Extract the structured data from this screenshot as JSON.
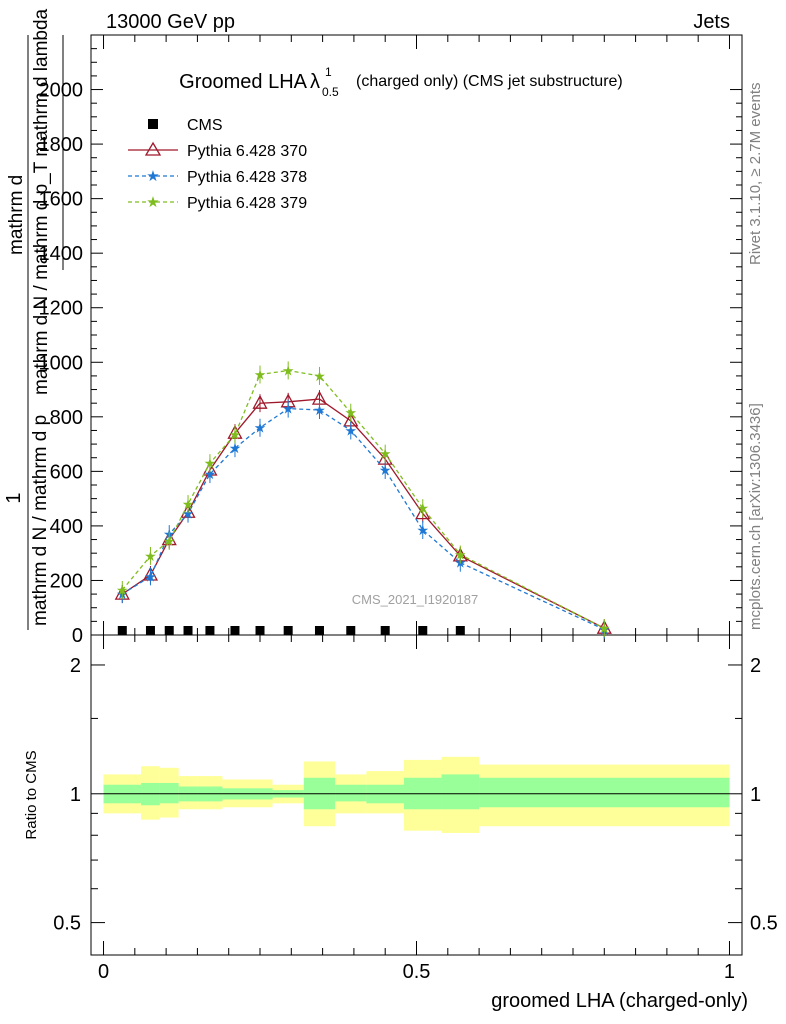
{
  "header": {
    "energy_label": "13000 GeV pp",
    "category_label": "Jets"
  },
  "side_labels": {
    "rivet": "Rivet 3.1.10, ≥ 2.7M events",
    "mcplots": "mcplots.cern.ch [arXiv:1306.3436]"
  },
  "watermark": "CMS_2021_I1920187",
  "chart_data": [
    {
      "type": "line",
      "title_main": "Groomed LHA",
      "title_symbol": "λ",
      "title_superscript": "1",
      "title_subscript": "0.5",
      "title_suffix": "(charged only) (CMS jet substructure)",
      "ylabel_fraction_numerator_left": "1",
      "ylabel_fraction_denominator_left": "mathrm d N / mathrm d p",
      "ylabel_fraction_numerator_right": "mathrm d",
      "ylabel_fraction_denominator_right": "mathrm d p",
      "ylabel_tilted": "mathrm d N / mathrm d p_T mathrm d lambda",
      "xlim": [
        -0.02,
        1.02
      ],
      "ylim": [
        0,
        2200
      ],
      "yticks": [
        0,
        200,
        400,
        600,
        800,
        1000,
        1200,
        1400,
        1600,
        1800,
        2000
      ],
      "ytick_labels": [
        "0",
        "200",
        "400",
        "600",
        "800",
        "1000",
        "1200",
        "1400",
        "1600",
        "1800",
        "2000"
      ],
      "legend_position": "top-left",
      "series": [
        {
          "name": "CMS",
          "style": "marker-square",
          "color": "#000000",
          "x": [
            0.03,
            0.075,
            0.105,
            0.135,
            0.17,
            0.21,
            0.25,
            0.295,
            0.345,
            0.395,
            0.45,
            0.51,
            0.57
          ],
          "y": [
            0,
            0,
            0,
            0,
            0,
            0,
            0,
            0,
            0,
            0,
            0,
            0,
            0
          ]
        },
        {
          "name": "Pythia 6.428 370",
          "style": "solid-triangle",
          "color": "#a0182b",
          "x": [
            0.03,
            0.075,
            0.105,
            0.135,
            0.17,
            0.21,
            0.25,
            0.295,
            0.345,
            0.395,
            0.45,
            0.51,
            0.57,
            0.8
          ],
          "y": [
            150,
            220,
            350,
            450,
            605,
            740,
            850,
            855,
            865,
            785,
            645,
            445,
            290,
            25
          ]
        },
        {
          "name": "Pythia 6.428 378",
          "style": "dashed-star",
          "color": "#1f78d4",
          "x": [
            0.03,
            0.075,
            0.105,
            0.135,
            0.17,
            0.21,
            0.25,
            0.295,
            0.345,
            0.395,
            0.45,
            0.51,
            0.57,
            0.8
          ],
          "y": [
            150,
            215,
            370,
            445,
            590,
            685,
            760,
            830,
            825,
            750,
            605,
            385,
            265,
            20
          ]
        },
        {
          "name": "Pythia 6.428 379",
          "style": "dashed-star",
          "color": "#7fbd1e",
          "x": [
            0.03,
            0.075,
            0.105,
            0.135,
            0.17,
            0.21,
            0.25,
            0.295,
            0.345,
            0.395,
            0.45,
            0.51,
            0.57,
            0.8
          ],
          "y": [
            165,
            290,
            345,
            480,
            630,
            735,
            955,
            970,
            950,
            815,
            665,
            465,
            295,
            25
          ]
        }
      ]
    },
    {
      "type": "area",
      "ylabel": "Ratio to CMS",
      "xlabel": "groomed LHA (charged-only)",
      "xlim": [
        -0.02,
        1.02
      ],
      "ylim": [
        0.42,
        2.35
      ],
      "log_y": true,
      "yticks": [
        0.5,
        1,
        2
      ],
      "ytick_labels": [
        "0.5",
        "1",
        "2"
      ],
      "xticks": [
        0,
        0.5,
        1
      ],
      "xtick_labels": [
        "0",
        "0.5",
        "1"
      ],
      "reference_line": 1,
      "bins": [
        {
          "x0": 0.0,
          "x1": 0.06,
          "inner": [
            0.95,
            1.05
          ],
          "outer": [
            0.9,
            1.11
          ]
        },
        {
          "x0": 0.06,
          "x1": 0.09,
          "inner": [
            0.94,
            1.06
          ],
          "outer": [
            0.87,
            1.16
          ]
        },
        {
          "x0": 0.09,
          "x1": 0.12,
          "inner": [
            0.95,
            1.06
          ],
          "outer": [
            0.88,
            1.15
          ]
        },
        {
          "x0": 0.12,
          "x1": 0.15,
          "inner": [
            0.96,
            1.04
          ],
          "outer": [
            0.92,
            1.1
          ]
        },
        {
          "x0": 0.15,
          "x1": 0.19,
          "inner": [
            0.96,
            1.04
          ],
          "outer": [
            0.92,
            1.1
          ]
        },
        {
          "x0": 0.19,
          "x1": 0.23,
          "inner": [
            0.97,
            1.03
          ],
          "outer": [
            0.93,
            1.08
          ]
        },
        {
          "x0": 0.23,
          "x1": 0.27,
          "inner": [
            0.97,
            1.03
          ],
          "outer": [
            0.93,
            1.08
          ]
        },
        {
          "x0": 0.27,
          "x1": 0.32,
          "inner": [
            0.98,
            1.02
          ],
          "outer": [
            0.95,
            1.05
          ]
        },
        {
          "x0": 0.32,
          "x1": 0.37,
          "inner": [
            0.92,
            1.09
          ],
          "outer": [
            0.84,
            1.19
          ]
        },
        {
          "x0": 0.37,
          "x1": 0.42,
          "inner": [
            0.96,
            1.05
          ],
          "outer": [
            0.9,
            1.11
          ]
        },
        {
          "x0": 0.42,
          "x1": 0.48,
          "inner": [
            0.95,
            1.05
          ],
          "outer": [
            0.9,
            1.13
          ]
        },
        {
          "x0": 0.48,
          "x1": 0.54,
          "inner": [
            0.92,
            1.09
          ],
          "outer": [
            0.82,
            1.2
          ]
        },
        {
          "x0": 0.54,
          "x1": 0.6,
          "inner": [
            0.92,
            1.11
          ],
          "outer": [
            0.81,
            1.22
          ]
        },
        {
          "x0": 0.6,
          "x1": 1.0,
          "inner": [
            0.93,
            1.09
          ],
          "outer": [
            0.84,
            1.17
          ]
        }
      ]
    }
  ]
}
